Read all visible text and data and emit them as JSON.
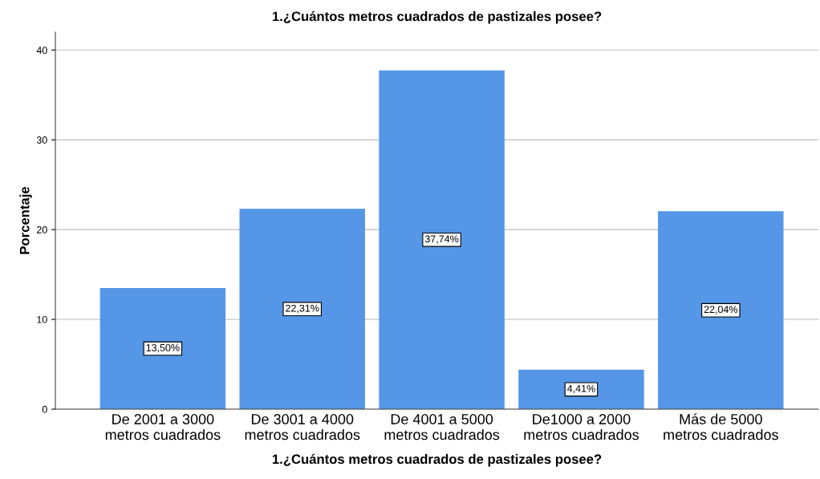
{
  "chart_data": {
    "type": "bar",
    "title": "1.¿Cuántos metros cuadrados de pastizales posee?",
    "xlabel": "1.¿Cuántos metros cuadrados de pastizales posee?",
    "ylabel": "Porcentaje",
    "categories": [
      "De 2001 a 3000\nmetros cuadrados",
      "De 3001 a 4000\nmetros cuadrados",
      "De 4001 a 5000\nmetros cuadrados",
      "De1000 a 2000\nmetros cuadrados",
      "Más de 5000\nmetros cuadrados"
    ],
    "values": [
      13.5,
      22.31,
      37.74,
      4.41,
      22.04
    ],
    "value_labels": [
      "13,50%",
      "22,31%",
      "37,74%",
      "4,41%",
      "22,04%"
    ],
    "color": "#5596e6",
    "ylim": [
      0,
      42
    ],
    "yticks": [
      0,
      10,
      20,
      30,
      40
    ],
    "grid": "y"
  }
}
